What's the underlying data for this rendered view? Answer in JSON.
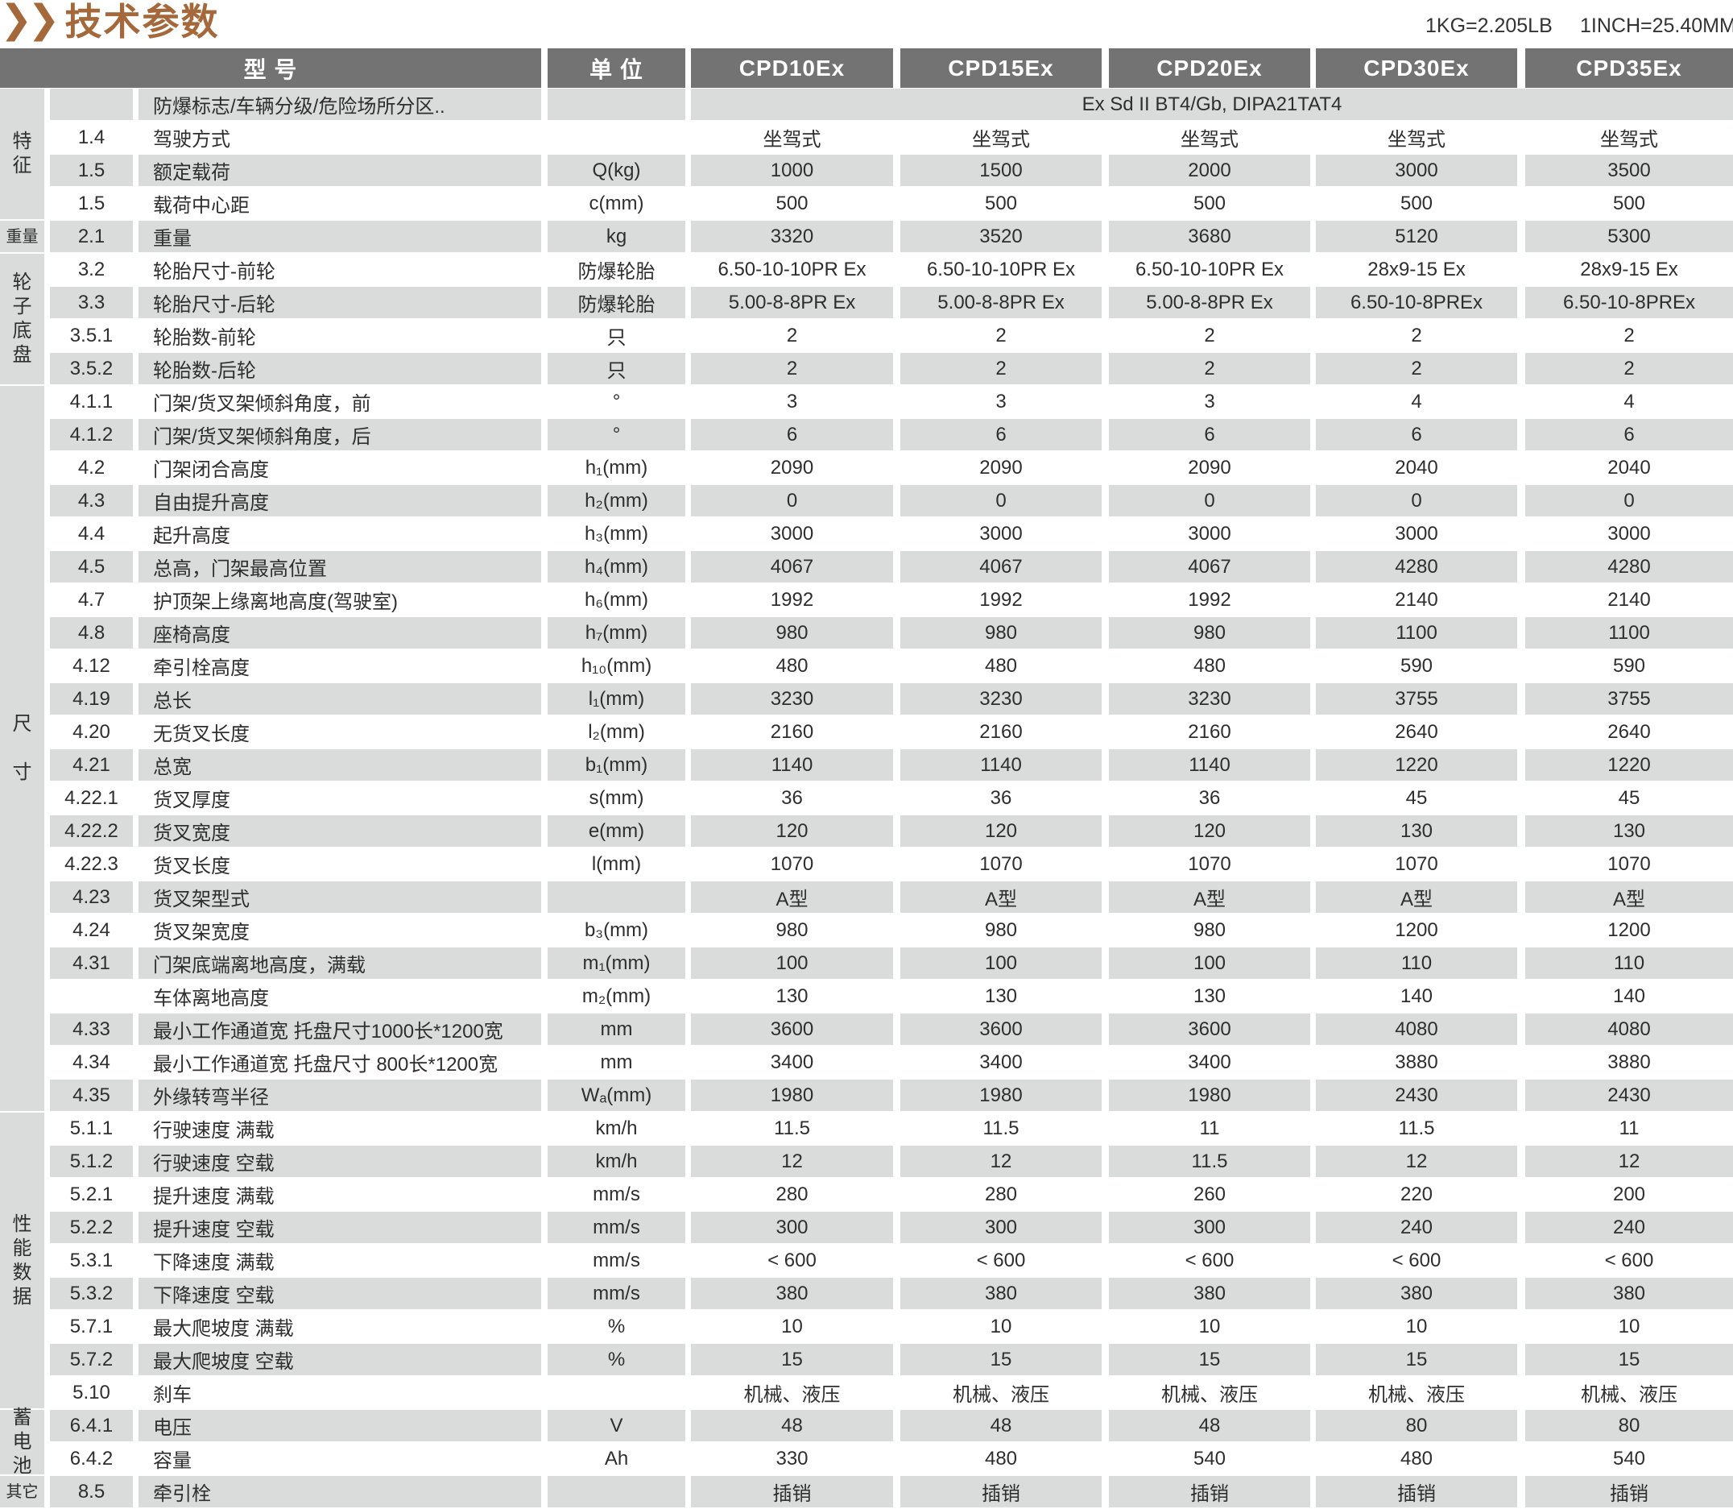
{
  "title": "技术参数",
  "title_icon": "double-chevron-right-icon",
  "conversions": [
    "1KG=2.205LB",
    "1INCH=25.40MM"
  ],
  "colors": {
    "title": "#a4683a",
    "header_bg": "#737373",
    "stripe": "#dadbdb"
  },
  "header": {
    "model_label": "型 号",
    "unit_label": "单 位",
    "models": [
      "CPD10Ex",
      "CPD15Ex",
      "CPD20Ex",
      "CPD30Ex",
      "CPD35Ex"
    ]
  },
  "groups": [
    {
      "label": "特\n征",
      "first": 0,
      "last": 3
    },
    {
      "label": "重量",
      "first": 4,
      "last": 4
    },
    {
      "label": "轮\n子\n底\n盘",
      "first": 5,
      "last": 8
    },
    {
      "label": "尺\n\n寸",
      "first": 9,
      "last": 30
    },
    {
      "label": "性\n能\n数\n据",
      "first": 31,
      "last": 39
    },
    {
      "label": "蓄\n电\n池",
      "first": 40,
      "last": 41
    },
    {
      "label": "其它",
      "first": 42,
      "last": 42
    }
  ],
  "rows": [
    {
      "no": "",
      "name": "防爆标志/车辆分级/危险场所分区..",
      "unit": "",
      "span": "Ex Sd II BT4/Gb,  DIPA21TAT4"
    },
    {
      "no": "1.4",
      "name": "驾驶方式",
      "unit": "",
      "values": [
        "坐驾式",
        "坐驾式",
        "坐驾式",
        "坐驾式",
        "坐驾式"
      ]
    },
    {
      "no": "1.5",
      "name": "额定载荷",
      "unit": "Q(kg)",
      "values": [
        "1000",
        "1500",
        "2000",
        "3000",
        "3500"
      ]
    },
    {
      "no": "1.5",
      "name": "载荷中心距",
      "unit": "c(mm)",
      "values": [
        "500",
        "500",
        "500",
        "500",
        "500"
      ]
    },
    {
      "no": "2.1",
      "name": "重量",
      "unit": "kg",
      "values": [
        "3320",
        "3520",
        "3680",
        "5120",
        "5300"
      ]
    },
    {
      "no": "3.2",
      "name": "轮胎尺寸-前轮",
      "unit": "防爆轮胎",
      "values": [
        "6.50-10-10PR Ex",
        "6.50-10-10PR Ex",
        "6.50-10-10PR Ex",
        "28x9-15 Ex",
        "28x9-15 Ex"
      ]
    },
    {
      "no": "3.3",
      "name": "轮胎尺寸-后轮",
      "unit": "防爆轮胎",
      "values": [
        "5.00-8-8PR Ex",
        "5.00-8-8PR Ex",
        "5.00-8-8PR Ex",
        "6.50-10-8PREx",
        "6.50-10-8PREx"
      ]
    },
    {
      "no": "3.5.1",
      "name": "轮胎数-前轮",
      "unit": "只",
      "values": [
        "2",
        "2",
        "2",
        "2",
        "2"
      ]
    },
    {
      "no": "3.5.2",
      "name": "轮胎数-后轮",
      "unit": "只",
      "values": [
        "2",
        "2",
        "2",
        "2",
        "2"
      ]
    },
    {
      "no": "4.1.1",
      "name": "门架/货叉架倾斜角度，前",
      "unit": "°",
      "values": [
        "3",
        "3",
        "3",
        "4",
        "4"
      ]
    },
    {
      "no": "4.1.2",
      "name": "门架/货叉架倾斜角度，后",
      "unit": "°",
      "values": [
        "6",
        "6",
        "6",
        "6",
        "6"
      ]
    },
    {
      "no": "4.2",
      "name": "门架闭合高度",
      "unit": "h₁(mm)",
      "values": [
        "2090",
        "2090",
        "2090",
        "2040",
        "2040"
      ]
    },
    {
      "no": "4.3",
      "name": "自由提升高度",
      "unit": "h₂(mm)",
      "values": [
        "0",
        "0",
        "0",
        "0",
        "0"
      ]
    },
    {
      "no": "4.4",
      "name": "起升高度",
      "unit": "h₃(mm)",
      "values": [
        "3000",
        "3000",
        "3000",
        "3000",
        "3000"
      ]
    },
    {
      "no": "4.5",
      "name": "总高，门架最高位置",
      "unit": "h₄(mm)",
      "values": [
        "4067",
        "4067",
        "4067",
        "4280",
        "4280"
      ]
    },
    {
      "no": "4.7",
      "name": "护顶架上缘离地高度(驾驶室)",
      "unit": "h₆(mm)",
      "values": [
        "1992",
        "1992",
        "1992",
        "2140",
        "2140"
      ]
    },
    {
      "no": "4.8",
      "name": "座椅高度",
      "unit": "h₇(mm)",
      "values": [
        "980",
        "980",
        "980",
        "1100",
        "1100"
      ]
    },
    {
      "no": "4.12",
      "name": "牵引栓高度",
      "unit": "h₁₀(mm)",
      "values": [
        "480",
        "480",
        "480",
        "590",
        "590"
      ]
    },
    {
      "no": "4.19",
      "name": "总长",
      "unit": "l₁(mm)",
      "values": [
        "3230",
        "3230",
        "3230",
        "3755",
        "3755"
      ]
    },
    {
      "no": "4.20",
      "name": "无货叉长度",
      "unit": "l₂(mm)",
      "values": [
        "2160",
        "2160",
        "2160",
        "2640",
        "2640"
      ]
    },
    {
      "no": "4.21",
      "name": "总宽",
      "unit": "b₁(mm)",
      "values": [
        "1140",
        "1140",
        "1140",
        "1220",
        "1220"
      ]
    },
    {
      "no": "4.22.1",
      "name": "货叉厚度",
      "unit": "s(mm)",
      "values": [
        "36",
        "36",
        "36",
        "45",
        "45"
      ]
    },
    {
      "no": "4.22.2",
      "name": "货叉宽度",
      "unit": "e(mm)",
      "values": [
        "120",
        "120",
        "120",
        "130",
        "130"
      ]
    },
    {
      "no": "4.22.3",
      "name": "货叉长度",
      "unit": "l(mm)",
      "values": [
        "1070",
        "1070",
        "1070",
        "1070",
        "1070"
      ]
    },
    {
      "no": "4.23",
      "name": "货叉架型式",
      "unit": "",
      "values": [
        "A型",
        "A型",
        "A型",
        "A型",
        "A型"
      ]
    },
    {
      "no": "4.24",
      "name": "货叉架宽度",
      "unit": "b₃(mm)",
      "values": [
        "980",
        "980",
        "980",
        "1200",
        "1200"
      ]
    },
    {
      "no": "4.31",
      "name": "门架底端离地高度，满载",
      "unit": "m₁(mm)",
      "values": [
        "100",
        "100",
        "100",
        "110",
        "110"
      ]
    },
    {
      "no": "",
      "name": "车体离地高度",
      "unit": "m₂(mm)",
      "values": [
        "130",
        "130",
        "130",
        "140",
        "140"
      ]
    },
    {
      "no": "4.33",
      "name": "最小工作通道宽 托盘尺寸1000长*1200宽",
      "unit": "mm",
      "values": [
        "3600",
        "3600",
        "3600",
        "4080",
        "4080"
      ]
    },
    {
      "no": "4.34",
      "name": "最小工作通道宽 托盘尺寸 800长*1200宽",
      "unit": "mm",
      "values": [
        "3400",
        "3400",
        "3400",
        "3880",
        "3880"
      ]
    },
    {
      "no": "4.35",
      "name": "外缘转弯半径",
      "unit": "Wₐ(mm)",
      "values": [
        "1980",
        "1980",
        "1980",
        "2430",
        "2430"
      ]
    },
    {
      "no": "5.1.1",
      "name": "行驶速度 满载",
      "unit": "km/h",
      "values": [
        "11.5",
        "11.5",
        "11",
        "11.5",
        "11"
      ]
    },
    {
      "no": "5.1.2",
      "name": "行驶速度 空载",
      "unit": "km/h",
      "values": [
        "12",
        "12",
        "11.5",
        "12",
        "12"
      ]
    },
    {
      "no": "5.2.1",
      "name": "提升速度 满载",
      "unit": "mm/s",
      "values": [
        "280",
        "280",
        "260",
        "220",
        "200"
      ]
    },
    {
      "no": "5.2.2",
      "name": "提升速度 空载",
      "unit": "mm/s",
      "values": [
        "300",
        "300",
        "300",
        "240",
        "240"
      ]
    },
    {
      "no": "5.3.1",
      "name": "下降速度 满载",
      "unit": "mm/s",
      "values": [
        "< 600",
        "< 600",
        "< 600",
        "< 600",
        "< 600"
      ]
    },
    {
      "no": "5.3.2",
      "name": "下降速度 空载",
      "unit": "mm/s",
      "values": [
        "380",
        "380",
        "380",
        "380",
        "380"
      ]
    },
    {
      "no": "5.7.1",
      "name": "最大爬坡度 满载",
      "unit": "%",
      "values": [
        "10",
        "10",
        "10",
        "10",
        "10"
      ]
    },
    {
      "no": "5.7.2",
      "name": "最大爬坡度 空载",
      "unit": "%",
      "values": [
        "15",
        "15",
        "15",
        "15",
        "15"
      ]
    },
    {
      "no": "5.10",
      "name": "刹车",
      "unit": "",
      "values": [
        "机械、液压",
        "机械、液压",
        "机械、液压",
        "机械、液压",
        "机械、液压"
      ]
    },
    {
      "no": "6.4.1",
      "name": "电压",
      "unit": "V",
      "values": [
        "48",
        "48",
        "48",
        "80",
        "80"
      ]
    },
    {
      "no": "6.4.2",
      "name": "容量",
      "unit": "Ah",
      "values": [
        "330",
        "480",
        "540",
        "480",
        "540"
      ]
    },
    {
      "no": "8.5",
      "name": "牵引栓",
      "unit": "",
      "values": [
        "插销",
        "插销",
        "插销",
        "插销",
        "插销"
      ]
    }
  ]
}
